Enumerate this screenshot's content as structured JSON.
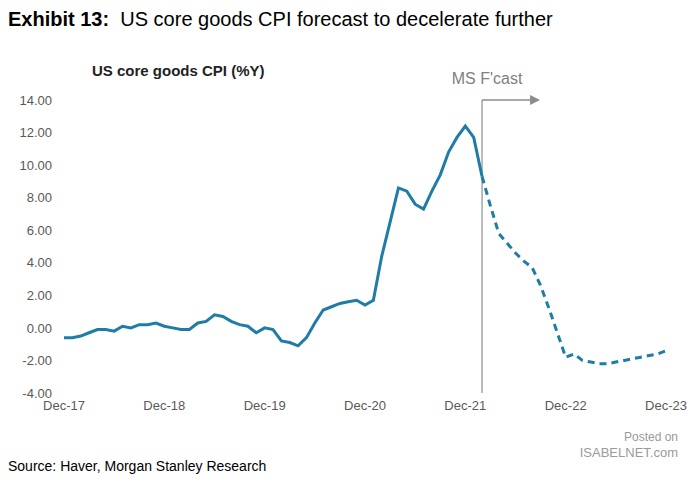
{
  "chart_data": {
    "type": "line",
    "title": "Exhibit 13:  US core goods CPI forecast to decelerate further",
    "subtitle": "US core goods CPI (%Y)",
    "source": "Source: Haver, Morgan Stanley Research",
    "watermark": [
      "Posted on",
      "ISABELNET.com"
    ],
    "annotations": [
      {
        "text": "MS F'cast",
        "x": 50
      }
    ],
    "categories": [
      "Dec-17",
      null,
      null,
      null,
      null,
      null,
      null,
      null,
      null,
      null,
      null,
      null,
      "Dec-18",
      null,
      null,
      null,
      null,
      null,
      null,
      null,
      null,
      null,
      null,
      null,
      "Dec-19",
      null,
      null,
      null,
      null,
      null,
      null,
      null,
      null,
      null,
      null,
      null,
      "Dec-20",
      null,
      null,
      null,
      null,
      null,
      null,
      null,
      null,
      null,
      null,
      null,
      "Dec-21",
      null,
      null,
      null,
      null,
      null,
      null,
      null,
      null,
      null,
      null,
      null,
      "Dec-22",
      null,
      null,
      null,
      null,
      null,
      null,
      null,
      null,
      null,
      null,
      null,
      "Dec-23"
    ],
    "series": [
      {
        "color": "#1f7ca6",
        "line_style": "solid",
        "values": [
          -0.6,
          -0.6,
          -0.5,
          -0.3,
          -0.1,
          -0.1,
          -0.2,
          0.1,
          0.0,
          0.2,
          0.2,
          0.3,
          0.1,
          0.0,
          -0.1,
          -0.1,
          0.3,
          0.4,
          0.8,
          0.7,
          0.4,
          0.2,
          0.1,
          -0.3,
          0.0,
          -0.1,
          -0.8,
          -0.9,
          -1.1,
          -0.6,
          0.3,
          1.1,
          1.3,
          1.5,
          1.6,
          1.7,
          1.4,
          1.7,
          4.4,
          6.5,
          8.6,
          8.4,
          7.6,
          7.3,
          8.4,
          9.4,
          10.8,
          11.7,
          12.4,
          11.7,
          9.3,
          null,
          null,
          null,
          null,
          null,
          null,
          null,
          null,
          null,
          null,
          null,
          null,
          null,
          null,
          null,
          null,
          null,
          null,
          null,
          null,
          null,
          null
        ]
      },
      {
        "color": "#1f7ca6",
        "line_style": "dashed",
        "values": [
          null,
          null,
          null,
          null,
          null,
          null,
          null,
          null,
          null,
          null,
          null,
          null,
          null,
          null,
          null,
          null,
          null,
          null,
          null,
          null,
          null,
          null,
          null,
          null,
          null,
          null,
          null,
          null,
          null,
          null,
          null,
          null,
          null,
          null,
          null,
          null,
          null,
          null,
          null,
          null,
          null,
          null,
          null,
          null,
          null,
          null,
          null,
          null,
          null,
          null,
          9.3,
          7.5,
          5.8,
          5.2,
          4.6,
          4.1,
          3.7,
          2.6,
          1.2,
          -0.3,
          -1.8,
          -1.6,
          -2.0,
          -2.1,
          -2.2,
          -2.2,
          -2.1,
          -2.0,
          -1.9,
          -1.8,
          -1.7,
          -1.6,
          -1.4
        ]
      }
    ],
    "ylim": [
      -4,
      14
    ],
    "yticks": [
      {
        "value": -4,
        "label": "-4.00"
      },
      {
        "value": -2,
        "label": "-2.00"
      },
      {
        "value": 0,
        "label": "0.00"
      },
      {
        "value": 2,
        "label": "2.00"
      },
      {
        "value": 4,
        "label": "4.00"
      },
      {
        "value": 6,
        "label": "6.00"
      },
      {
        "value": 8,
        "label": "8.00"
      },
      {
        "value": 10,
        "label": "10.00"
      },
      {
        "value": 12,
        "label": "12.00"
      },
      {
        "value": 14,
        "label": "14.00"
      }
    ],
    "grid": false
  }
}
